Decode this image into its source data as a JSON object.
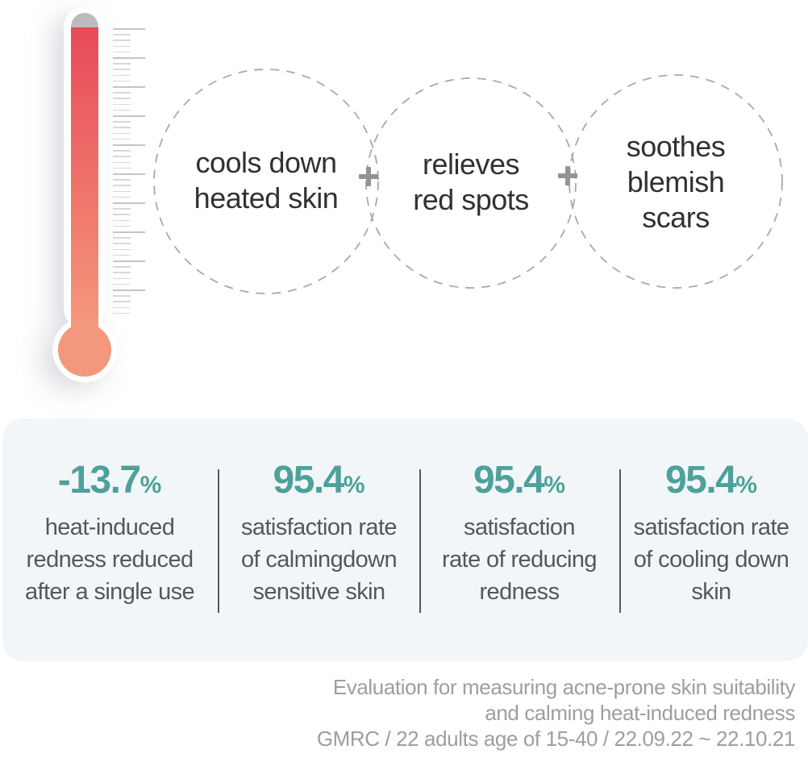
{
  "benefits": {
    "circles": [
      {
        "label": "cools down\nheated skin"
      },
      {
        "label": "relieves\nred spots"
      },
      {
        "label": "soothes\nblemish scars"
      }
    ],
    "plus": "+"
  },
  "stats": {
    "items": [
      {
        "value": "-13.7",
        "unit": "%",
        "description": "heat-induced\nredness reduced\nafter a single use"
      },
      {
        "value": "95.4",
        "unit": "%",
        "description": "satisfaction rate\nof calmingdown\nsensitive skin"
      },
      {
        "value": "95.4",
        "unit": "%",
        "description": "satisfaction\nrate of reducing\nredness"
      },
      {
        "value": "95.4",
        "unit": "%",
        "description": "satisfaction rate\nof cooling down\nskin"
      }
    ]
  },
  "footnote": {
    "text": "Evaluation for measuring acne-prone skin suitability\nand calming heat-induced redness\nGMRC / 22 adults age of 15-40 / 22.09.22 ~ 22.10.21"
  },
  "colors": {
    "accent_teal": "#4da19a",
    "mercury_top": "#e84a58",
    "mercury_bottom": "#f59b7d",
    "bulb_color": "#f3987c",
    "cap_gray": "#babcbf",
    "panel_bg": "#f3f6f9",
    "circle_dash": "#a6aaad",
    "plus_gray": "#909496",
    "text_dark": "#2f3133",
    "text_gray": "#54585c",
    "footnote_gray": "#9b9fa2"
  }
}
